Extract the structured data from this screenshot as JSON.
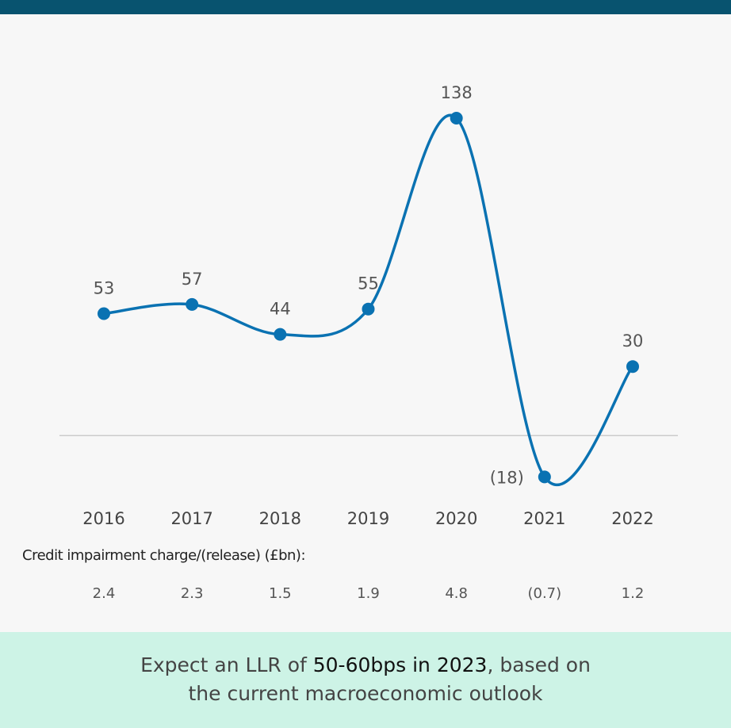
{
  "chart_data": {
    "type": "line",
    "categories": [
      "2016",
      "2017",
      "2018",
      "2019",
      "2020",
      "2021",
      "2022"
    ],
    "series": [
      {
        "values": [
          53,
          57,
          44,
          55,
          138,
          -18,
          30
        ]
      }
    ],
    "point_labels": [
      "53",
      "57",
      "44",
      "55",
      "138",
      "(18)",
      "30"
    ],
    "ylim": [
      -25,
      150
    ],
    "grid": false,
    "colors": {
      "line": "#0a72b2",
      "zero_line": "#cccccc"
    }
  },
  "impairment": {
    "title": "Credit impairment charge/(release) (£bn):",
    "values": [
      "2.4",
      "2.3",
      "1.5",
      "1.9",
      "4.8",
      "(0.7)",
      "1.2"
    ]
  },
  "banner": {
    "prefix": "Expect an LLR of ",
    "highlight": "50-60bps in 2023",
    "suffix": ", based on",
    "line2": "the current macroeconomic outlook"
  },
  "colors": {
    "top_bar": "#08536f",
    "banner_bg": "#cdf3e6"
  }
}
